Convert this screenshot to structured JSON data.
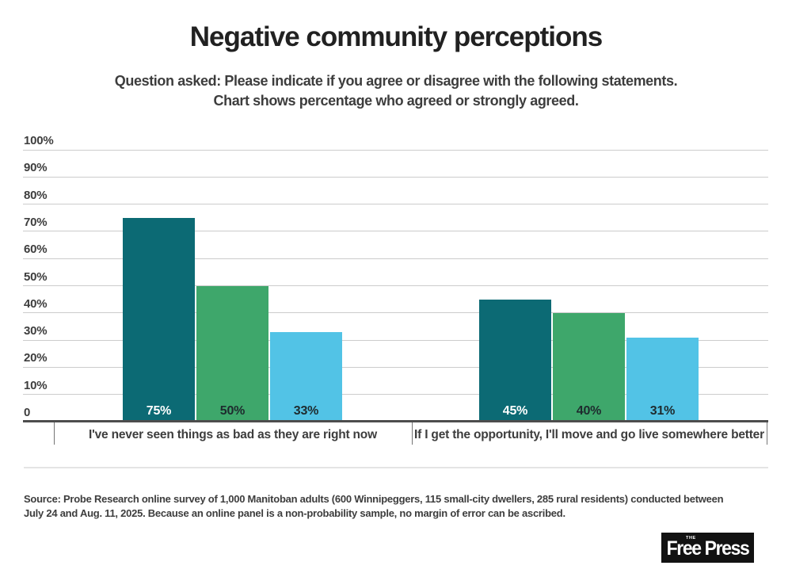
{
  "chart_data": {
    "type": "bar",
    "title": "Negative community perceptions",
    "subtitle_line1": "Question asked: Please indicate if you agree or disagree with the following statements.",
    "subtitle_line2": "Chart shows percentage who agreed or strongly agreed.",
    "categories": [
      "I've never seen things as bad as they are right now",
      "If I get the opportunity, I'll move and go live somewhere better"
    ],
    "series": [
      {
        "name": "dark-teal",
        "color": "#0c6a74",
        "label_color": "#ffffff",
        "values": [
          75,
          45
        ]
      },
      {
        "name": "green",
        "color": "#3ea76b",
        "label_color": "#1e2b2e",
        "values": [
          50,
          40
        ]
      },
      {
        "name": "light-blue",
        "color": "#52c3e6",
        "label_color": "#1e2b2e",
        "values": [
          33,
          31
        ]
      }
    ],
    "value_labels": [
      [
        "75%",
        "50%",
        "33%"
      ],
      [
        "45%",
        "40%",
        "31%"
      ]
    ],
    "value_suffix": "%",
    "y_axis": {
      "ticks": [
        "100%",
        "90%",
        "80%",
        "70%",
        "60%",
        "50%",
        "40%",
        "30%",
        "20%",
        "10%",
        "0"
      ],
      "min": 0,
      "max": 100,
      "grid": true
    },
    "legend": "none",
    "grid_color": "#cccccc",
    "axis_color": "#4d4d4d"
  },
  "footer": {
    "source_line1": "Source: Probe Research online survey of 1,000 Manitoban adults (600 Winnipeggers, 115 small-city dwellers, 285 rural residents) conducted between",
    "source_line2": "July 24 and Aug. 11, 2025.  Because an online panel is a non-probability sample, no margin of error can be ascribed.",
    "logo": {
      "the": "THE",
      "name": "Free Press",
      "bg_color": "#121212"
    }
  }
}
